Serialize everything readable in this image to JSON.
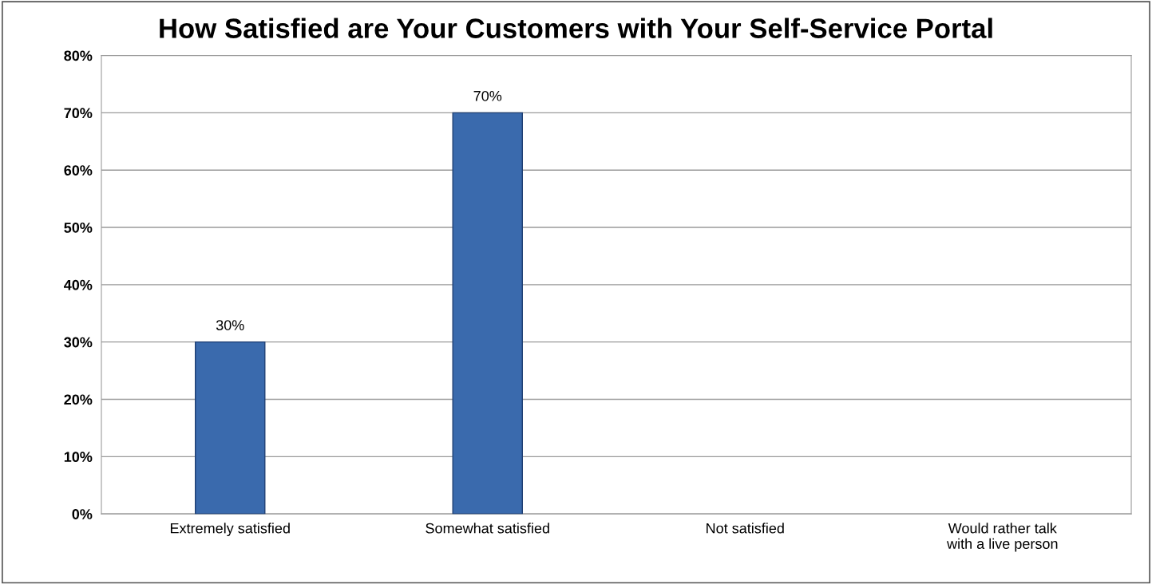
{
  "chart_data": {
    "type": "bar",
    "title": "How Satisfied are Your Customers with Your Self-Service Portal",
    "categories": [
      "Extremely satisfied",
      "Somewhat satisfied",
      "Not satisfied",
      "Would rather talk\nwith a live person"
    ],
    "values": [
      30,
      70,
      0,
      0
    ],
    "color": "#3a6aad",
    "value_labels": [
      "30%",
      "70%",
      null,
      null
    ],
    "ylim": [
      0,
      80
    ],
    "yticks": [
      {
        "value": 0,
        "label": "0%"
      },
      {
        "value": 10,
        "label": "10%"
      },
      {
        "value": 20,
        "label": "20%"
      },
      {
        "value": 30,
        "label": "30%"
      },
      {
        "value": 40,
        "label": "40%"
      },
      {
        "value": 50,
        "label": "50%"
      },
      {
        "value": 60,
        "label": "60%"
      },
      {
        "value": 70,
        "label": "70%"
      },
      {
        "value": 80,
        "label": "80%"
      }
    ],
    "grid": "y"
  }
}
